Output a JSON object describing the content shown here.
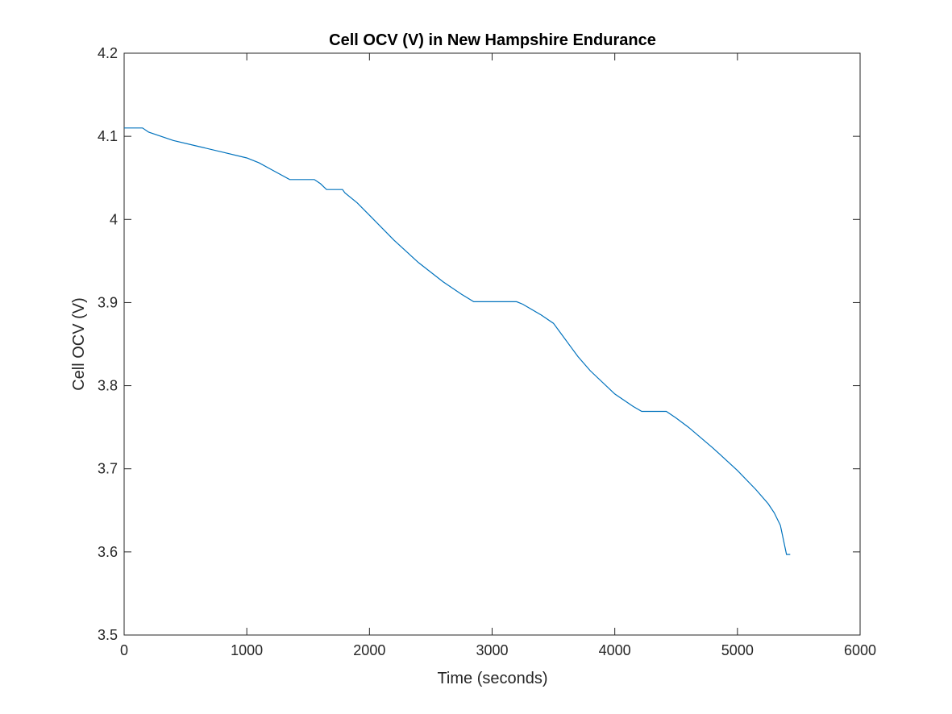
{
  "chart_data": {
    "type": "line",
    "title": "Cell OCV (V) in New Hampshire Endurance",
    "xlabel": "Time (seconds)",
    "ylabel": "Cell OCV (V)",
    "xlim": [
      0,
      6000
    ],
    "ylim": [
      3.5,
      4.2
    ],
    "xticks": [
      0,
      1000,
      2000,
      3000,
      4000,
      5000,
      6000
    ],
    "xtick_labels": [
      "0",
      "1000",
      "2000",
      "3000",
      "4000",
      "5000",
      "6000"
    ],
    "yticks": [
      3.5,
      3.6,
      3.7,
      3.8,
      3.9,
      4.0,
      4.1,
      4.2
    ],
    "ytick_labels": [
      "3.5",
      "3.6",
      "3.7",
      "3.8",
      "3.9",
      "4",
      "4.1",
      "4.2"
    ],
    "grid": false,
    "line_color": "#0072BD",
    "series": [
      {
        "x": [
          0,
          150,
          200,
          400,
          600,
          800,
          1000,
          1100,
          1200,
          1350,
          1550,
          1600,
          1650,
          1780,
          1800,
          1900,
          2000,
          2200,
          2400,
          2600,
          2750,
          2850,
          3000,
          3200,
          3250,
          3400,
          3500,
          3550,
          3650,
          3700,
          3800,
          4000,
          4150,
          4220,
          4300,
          4420,
          4500,
          4600,
          4800,
          5000,
          5150,
          5250,
          5300,
          5350,
          5400,
          5430
        ],
        "y": [
          4.11,
          4.11,
          4.105,
          4.095,
          4.088,
          4.081,
          4.074,
          4.068,
          4.06,
          4.048,
          4.048,
          4.043,
          4.036,
          4.036,
          4.032,
          4.02,
          4.005,
          3.975,
          3.948,
          3.925,
          3.91,
          3.901,
          3.901,
          3.901,
          3.898,
          3.885,
          3.875,
          3.865,
          3.845,
          3.835,
          3.818,
          3.79,
          3.775,
          3.769,
          3.769,
          3.769,
          3.761,
          3.75,
          3.725,
          3.698,
          3.675,
          3.658,
          3.647,
          3.632,
          3.597,
          3.597
        ]
      }
    ]
  }
}
